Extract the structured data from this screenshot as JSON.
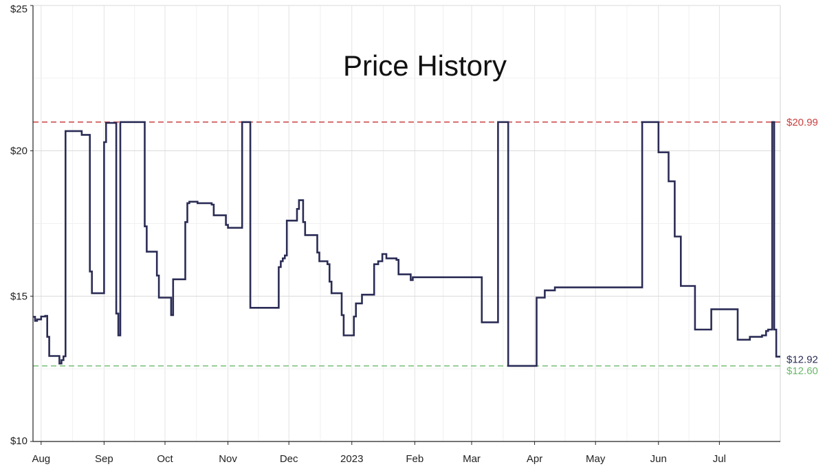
{
  "chart_data": {
    "type": "line",
    "title": "Price History",
    "x_tick_labels": [
      "Aug",
      "Sep",
      "Oct",
      "Nov",
      "Dec",
      "2023",
      "Feb",
      "Mar",
      "Apr",
      "May",
      "Jun",
      "Jul"
    ],
    "x_ticks": [
      "2022-08-01",
      "2022-09-01",
      "2022-10-01",
      "2022-11-01",
      "2022-12-01",
      "2023-01-01",
      "2023-02-01",
      "2023-03-01",
      "2023-04-01",
      "2023-05-01",
      "2023-06-01",
      "2023-07-01"
    ],
    "x_range": [
      "2022-07-28",
      "2023-07-31"
    ],
    "y_tick_labels": [
      "$10",
      "$15",
      "$20",
      "$25"
    ],
    "y_ticks": [
      10,
      15,
      20,
      25
    ],
    "ylim": [
      10,
      25
    ],
    "grid": true,
    "step": true,
    "reference_lines": [
      {
        "label": "$20.99",
        "value": 20.99,
        "color": "#c94040",
        "style": "dashed"
      },
      {
        "label": "$12.60",
        "value": 12.6,
        "color": "#6bb86b",
        "style": "dashed"
      }
    ],
    "current_label": {
      "label": "$12.92",
      "value": 12.92,
      "color": "#2a2c55"
    },
    "series": [
      {
        "color": "#2a2c55",
        "points": [
          [
            "2022-07-28",
            14.29
          ],
          [
            "2022-07-29",
            14.15
          ],
          [
            "2022-07-30",
            14.2
          ],
          [
            "2022-08-01",
            14.3
          ],
          [
            "2022-08-03",
            14.32
          ],
          [
            "2022-08-04",
            13.6
          ],
          [
            "2022-08-05",
            12.94
          ],
          [
            "2022-08-10",
            12.68
          ],
          [
            "2022-08-11",
            12.8
          ],
          [
            "2022-08-12",
            12.93
          ],
          [
            "2022-08-13",
            20.68
          ],
          [
            "2022-08-21",
            20.55
          ],
          [
            "2022-08-25",
            15.85
          ],
          [
            "2022-08-26",
            15.1
          ],
          [
            "2022-09-01",
            20.3
          ],
          [
            "2022-09-02",
            20.96
          ],
          [
            "2022-09-07",
            14.4
          ],
          [
            "2022-09-08",
            13.65
          ],
          [
            "2022-09-09",
            20.99
          ],
          [
            "2022-09-21",
            17.4
          ],
          [
            "2022-09-22",
            16.53
          ],
          [
            "2022-09-27",
            15.71
          ],
          [
            "2022-09-28",
            14.95
          ],
          [
            "2022-10-04",
            14.35
          ],
          [
            "2022-10-05",
            15.58
          ],
          [
            "2022-10-11",
            17.55
          ],
          [
            "2022-10-12",
            18.2
          ],
          [
            "2022-10-13",
            18.25
          ],
          [
            "2022-10-17",
            18.2
          ],
          [
            "2022-10-24",
            18.15
          ],
          [
            "2022-10-25",
            17.78
          ],
          [
            "2022-10-31",
            17.45
          ],
          [
            "2022-11-01",
            17.35
          ],
          [
            "2022-11-08",
            20.99
          ],
          [
            "2022-11-12",
            14.6
          ],
          [
            "2022-11-26",
            16.0
          ],
          [
            "2022-11-27",
            16.2
          ],
          [
            "2022-11-28",
            16.3
          ],
          [
            "2022-11-29",
            16.4
          ],
          [
            "2022-11-30",
            17.6
          ],
          [
            "2022-12-05",
            18.0
          ],
          [
            "2022-12-06",
            18.3
          ],
          [
            "2022-12-08",
            17.55
          ],
          [
            "2022-12-09",
            17.1
          ],
          [
            "2022-12-15",
            16.5
          ],
          [
            "2022-12-16",
            16.2
          ],
          [
            "2022-12-20",
            16.1
          ],
          [
            "2022-12-21",
            15.5
          ],
          [
            "2022-12-22",
            15.1
          ],
          [
            "2022-12-27",
            14.35
          ],
          [
            "2022-12-28",
            13.65
          ],
          [
            "2023-01-02",
            14.3
          ],
          [
            "2023-01-03",
            14.75
          ],
          [
            "2023-01-06",
            15.05
          ],
          [
            "2023-01-12",
            16.1
          ],
          [
            "2023-01-14",
            16.2
          ],
          [
            "2023-01-16",
            16.45
          ],
          [
            "2023-01-18",
            16.3
          ],
          [
            "2023-01-23",
            16.25
          ],
          [
            "2023-01-24",
            15.75
          ],
          [
            "2023-01-30",
            15.55
          ],
          [
            "2023-01-31",
            15.65
          ],
          [
            "2023-03-06",
            14.1
          ],
          [
            "2023-03-14",
            20.99
          ],
          [
            "2023-03-19",
            12.6
          ],
          [
            "2023-04-02",
            14.95
          ],
          [
            "2023-04-06",
            15.2
          ],
          [
            "2023-04-11",
            15.3
          ],
          [
            "2023-05-24",
            20.99
          ],
          [
            "2023-06-01",
            19.95
          ],
          [
            "2023-06-06",
            18.95
          ],
          [
            "2023-06-09",
            17.05
          ],
          [
            "2023-06-12",
            15.35
          ],
          [
            "2023-06-19",
            13.85
          ],
          [
            "2023-06-27",
            14.55
          ],
          [
            "2023-07-10",
            13.5
          ],
          [
            "2023-07-16",
            13.6
          ],
          [
            "2023-07-22",
            13.65
          ],
          [
            "2023-07-24",
            13.8
          ],
          [
            "2023-07-25",
            13.85
          ],
          [
            "2023-07-27",
            20.99
          ],
          [
            "2023-07-28",
            13.85
          ],
          [
            "2023-07-29",
            12.92
          ]
        ]
      }
    ]
  }
}
